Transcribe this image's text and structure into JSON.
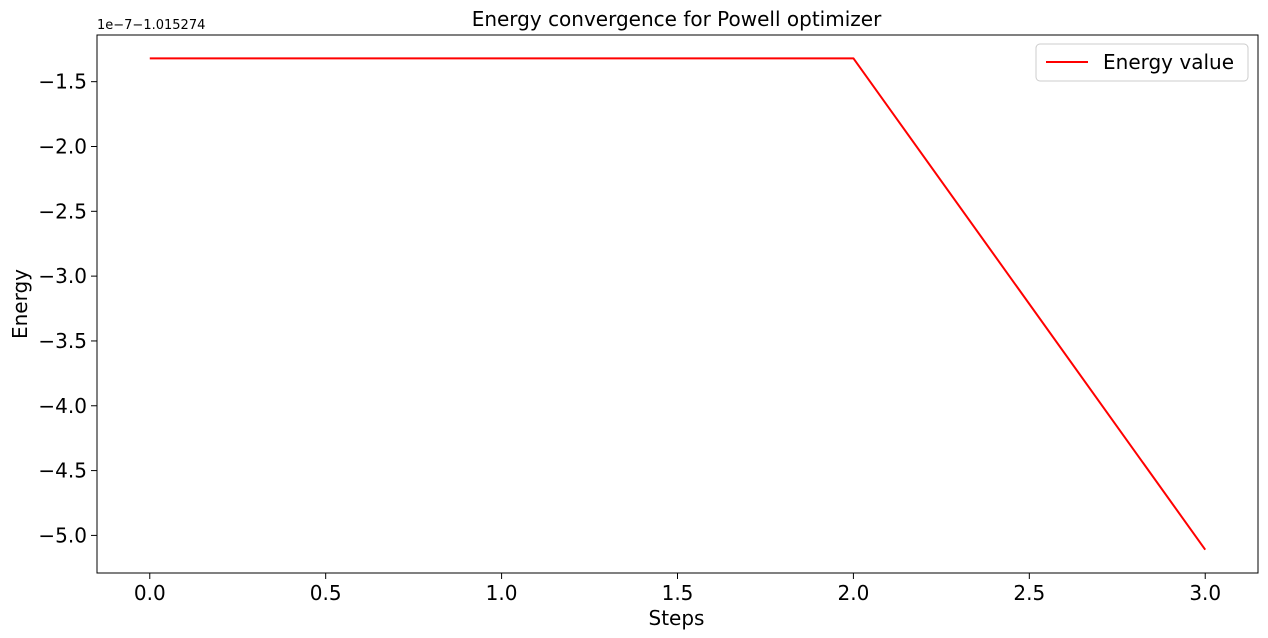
{
  "chart_data": {
    "type": "line",
    "title": "Energy convergence for Powell optimizer",
    "xlabel": "Steps",
    "ylabel": "Energy",
    "y_offset_text": "1e−7−1.015274",
    "x_ticks": [
      0.0,
      0.5,
      1.0,
      1.5,
      2.0,
      2.5,
      3.0
    ],
    "x_tick_labels": [
      "0.0",
      "0.5",
      "1.0",
      "1.5",
      "2.0",
      "2.5",
      "3.0"
    ],
    "y_ticks": [
      -1.5,
      -2.0,
      -2.5,
      -3.0,
      -3.5,
      -4.0,
      -4.5,
      -5.0
    ],
    "y_tick_labels": [
      "−1.5",
      "−2.0",
      "−2.5",
      "−3.0",
      "−3.5",
      "−4.0",
      "−4.5",
      "−5.0"
    ],
    "xlim": [
      -0.15,
      3.15
    ],
    "ylim": [
      -5.29,
      -1.14
    ],
    "grid": false,
    "legend": "top-right",
    "series": [
      {
        "name": "Energy value",
        "color": "#ff0000",
        "x": [
          0,
          1,
          2,
          3
        ],
        "y": [
          -1.32,
          -1.32,
          -1.32,
          -5.11
        ]
      }
    ]
  }
}
